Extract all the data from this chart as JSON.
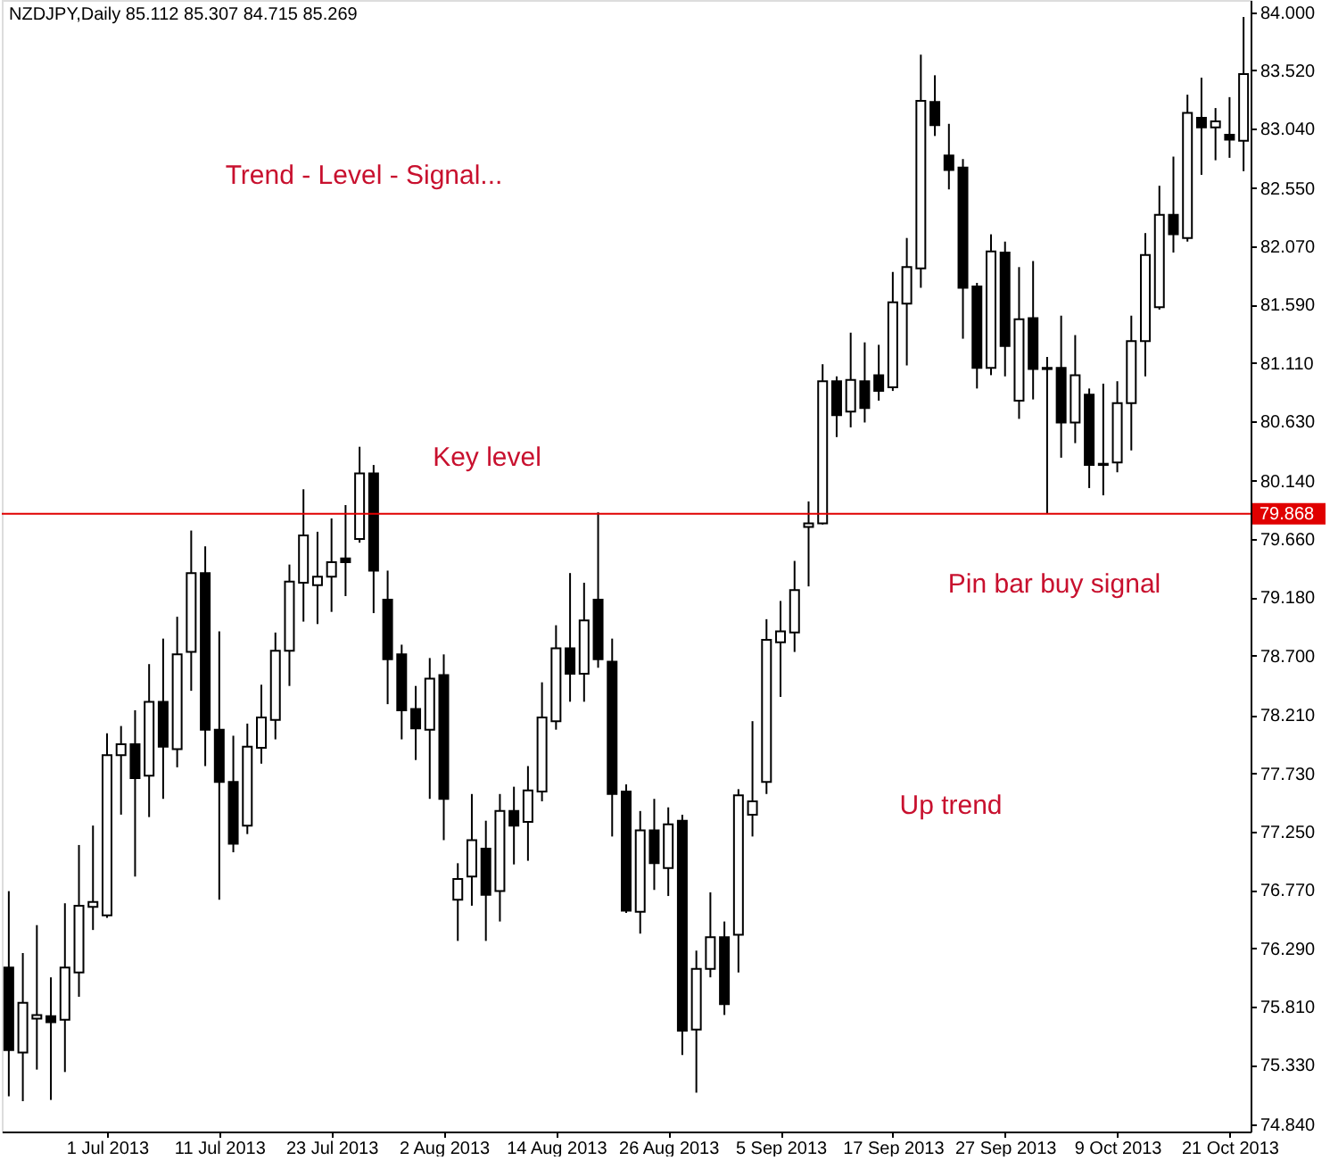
{
  "chart_data": {
    "type": "candlestick",
    "title": "NZDJPY,Daily  85.112 85.307 84.715 85.269",
    "annotations": [
      "Trend - Level - Signal...",
      "Key level",
      "Pin bar buy signal",
      "Up trend"
    ],
    "categories": [
      null,
      null,
      null,
      null,
      null,
      null,
      null,
      "1 Jul 2013",
      null,
      null,
      null,
      null,
      null,
      null,
      null,
      "11 Jul 2013",
      null,
      null,
      null,
      null,
      null,
      null,
      null,
      "23 Jul 2013",
      null,
      null,
      null,
      null,
      null,
      null,
      null,
      "2 Aug 2013",
      null,
      null,
      null,
      null,
      null,
      null,
      null,
      "14 Aug 2013",
      null,
      null,
      null,
      null,
      null,
      null,
      null,
      "26 Aug 2013",
      null,
      null,
      null,
      null,
      null,
      null,
      null,
      "5 Sep 2013",
      null,
      null,
      null,
      null,
      null,
      null,
      null,
      "17 Sep 2013",
      null,
      null,
      null,
      null,
      null,
      null,
      null,
      "27 Sep 2013",
      null,
      null,
      null,
      null,
      null,
      null,
      null,
      "9 Oct 2013",
      null,
      null,
      null,
      null,
      null,
      null,
      null,
      "21 Oct 2013",
      null
    ],
    "ohlc": [
      [
        76.13,
        76.76,
        75.07,
        75.45
      ],
      [
        75.43,
        76.25,
        75.03,
        75.84
      ],
      [
        75.71,
        76.48,
        75.29,
        75.74
      ],
      [
        75.73,
        76.05,
        75.04,
        75.68
      ],
      [
        75.7,
        76.66,
        75.27,
        76.13
      ],
      [
        76.09,
        77.14,
        75.89,
        76.64
      ],
      [
        76.63,
        77.3,
        76.44,
        76.67
      ],
      [
        76.56,
        78.06,
        76.54,
        77.88
      ],
      [
        77.88,
        78.12,
        77.39,
        77.97
      ],
      [
        77.97,
        78.25,
        76.88,
        77.69
      ],
      [
        77.71,
        78.63,
        77.37,
        78.32
      ],
      [
        78.32,
        78.84,
        77.52,
        77.95
      ],
      [
        77.93,
        79.02,
        77.78,
        78.71
      ],
      [
        78.73,
        79.73,
        78.41,
        79.38
      ],
      [
        79.38,
        79.6,
        77.79,
        78.09
      ],
      [
        78.09,
        78.9,
        76.69,
        77.66
      ],
      [
        77.66,
        78.04,
        77.08,
        77.15
      ],
      [
        77.3,
        78.14,
        77.23,
        77.95
      ],
      [
        77.94,
        78.46,
        77.81,
        78.19
      ],
      [
        78.17,
        78.89,
        78.01,
        78.74
      ],
      [
        78.74,
        79.45,
        78.45,
        79.31
      ],
      [
        79.3,
        80.07,
        78.98,
        79.69
      ],
      [
        79.28,
        79.72,
        78.96,
        79.35
      ],
      [
        79.35,
        79.83,
        79.06,
        79.47
      ],
      [
        79.5,
        79.94,
        79.19,
        79.47
      ],
      [
        79.66,
        80.42,
        79.63,
        80.2
      ],
      [
        80.2,
        80.27,
        79.05,
        79.4
      ],
      [
        79.16,
        79.4,
        78.3,
        78.67
      ],
      [
        78.71,
        78.79,
        78.01,
        78.25
      ],
      [
        78.26,
        78.45,
        77.84,
        78.1
      ],
      [
        78.09,
        78.68,
        77.52,
        78.51
      ],
      [
        78.54,
        78.71,
        77.18,
        77.52
      ],
      [
        76.69,
        76.99,
        76.35,
        76.86
      ],
      [
        76.88,
        77.56,
        76.64,
        77.18
      ],
      [
        77.11,
        77.34,
        76.35,
        76.73
      ],
      [
        76.76,
        77.56,
        76.51,
        77.42
      ],
      [
        77.42,
        77.62,
        76.98,
        77.3
      ],
      [
        77.33,
        77.79,
        77.01,
        77.59
      ],
      [
        77.58,
        78.48,
        77.5,
        78.19
      ],
      [
        78.16,
        78.95,
        78.09,
        78.76
      ],
      [
        78.76,
        79.38,
        78.32,
        78.55
      ],
      [
        78.55,
        79.3,
        78.32,
        78.99
      ],
      [
        79.16,
        79.88,
        78.6,
        78.67
      ],
      [
        78.65,
        78.84,
        77.21,
        77.56
      ],
      [
        77.58,
        77.64,
        76.58,
        76.6
      ],
      [
        76.59,
        77.42,
        76.41,
        77.26
      ],
      [
        77.26,
        77.52,
        76.77,
        76.99
      ],
      [
        76.95,
        77.45,
        76.72,
        77.31
      ],
      [
        77.34,
        77.39,
        75.41,
        75.61
      ],
      [
        75.62,
        76.27,
        75.1,
        76.12
      ],
      [
        76.12,
        76.75,
        76.05,
        76.38
      ],
      [
        76.38,
        76.51,
        75.74,
        75.83
      ],
      [
        76.4,
        77.6,
        76.09,
        77.55
      ],
      [
        77.39,
        78.16,
        77.21,
        77.5
      ],
      [
        77.66,
        79.0,
        77.56,
        78.83
      ],
      [
        78.81,
        79.15,
        78.36,
        78.9
      ],
      [
        78.89,
        79.48,
        78.73,
        79.24
      ],
      [
        79.76,
        79.97,
        79.27,
        79.79
      ],
      [
        79.79,
        81.1,
        79.78,
        80.96
      ],
      [
        80.96,
        81.0,
        80.5,
        80.68
      ],
      [
        80.71,
        81.36,
        80.58,
        80.97
      ],
      [
        80.96,
        81.28,
        80.62,
        80.74
      ],
      [
        81.01,
        81.26,
        80.8,
        80.88
      ],
      [
        80.91,
        81.86,
        80.88,
        81.61
      ],
      [
        81.6,
        82.14,
        81.09,
        81.9
      ],
      [
        81.89,
        83.65,
        81.73,
        83.27
      ],
      [
        83.26,
        83.48,
        82.98,
        83.07
      ],
      [
        82.82,
        83.08,
        82.54,
        82.7
      ],
      [
        82.72,
        82.79,
        81.31,
        81.73
      ],
      [
        81.74,
        81.77,
        80.9,
        81.07
      ],
      [
        81.07,
        82.17,
        81.01,
        82.03
      ],
      [
        82.02,
        82.11,
        81.0,
        81.25
      ],
      [
        80.8,
        81.9,
        80.65,
        81.47
      ],
      [
        81.48,
        81.95,
        80.81,
        81.06
      ],
      [
        81.06,
        81.16,
        79.87,
        81.07
      ],
      [
        81.07,
        81.5,
        80.33,
        80.62
      ],
      [
        80.62,
        81.34,
        80.45,
        81.01
      ],
      [
        80.85,
        80.9,
        80.08,
        80.27
      ],
      [
        80.27,
        80.94,
        80.02,
        80.28
      ],
      [
        80.29,
        80.96,
        80.21,
        80.78
      ],
      [
        80.78,
        81.5,
        80.39,
        81.29
      ],
      [
        81.29,
        82.18,
        81.0,
        82.0
      ],
      [
        81.57,
        82.57,
        81.55,
        82.33
      ],
      [
        82.33,
        82.81,
        82.02,
        82.17
      ],
      [
        82.14,
        83.32,
        82.11,
        83.17
      ],
      [
        83.13,
        83.46,
        82.66,
        83.05
      ],
      [
        83.05,
        83.21,
        82.78,
        83.1
      ],
      [
        82.99,
        83.3,
        82.8,
        82.95
      ],
      [
        82.94,
        83.96,
        82.69,
        83.49
      ]
    ],
    "colors": [
      "#000000",
      "#ffffff",
      "#ffffff",
      "#000000",
      "#ffffff",
      "#ffffff",
      "#ffffff",
      "#ffffff",
      "#ffffff",
      "#000000",
      "#ffffff",
      "#000000",
      "#ffffff",
      "#ffffff",
      "#000000",
      "#000000",
      "#000000",
      "#ffffff",
      "#ffffff",
      "#ffffff",
      "#ffffff",
      "#ffffff",
      "#ffffff",
      "#ffffff",
      "#000000",
      "#ffffff",
      "#000000",
      "#000000",
      "#000000",
      "#000000",
      "#ffffff",
      "#000000",
      "#ffffff",
      "#ffffff",
      "#000000",
      "#ffffff",
      "#000000",
      "#ffffff",
      "#ffffff",
      "#ffffff",
      "#000000",
      "#ffffff",
      "#000000",
      "#000000",
      "#000000",
      "#ffffff",
      "#000000",
      "#ffffff",
      "#000000",
      "#ffffff",
      "#ffffff",
      "#000000",
      "#ffffff",
      "#ffffff",
      "#ffffff",
      "#ffffff",
      "#ffffff",
      "#ffffff",
      "#ffffff",
      "#000000",
      "#ffffff",
      "#000000",
      "#000000",
      "#ffffff",
      "#ffffff",
      "#ffffff",
      "#000000",
      "#000000",
      "#000000",
      "#000000",
      "#ffffff",
      "#000000",
      "#ffffff",
      "#000000",
      "#ffffff",
      "#000000",
      "#ffffff",
      "#000000",
      "#ffffff",
      "#ffffff",
      "#ffffff",
      "#ffffff",
      "#ffffff",
      "#000000",
      "#ffffff",
      "#000000",
      "#ffffff",
      "#000000",
      "#ffffff"
    ],
    "ylim": [
      74.78,
      84.1
    ],
    "yticks": [
      {
        "value": 74.84,
        "label": "74.840"
      },
      {
        "value": 75.33,
        "label": "75.330"
      },
      {
        "value": 75.81,
        "label": "75.810"
      },
      {
        "value": 76.29,
        "label": "76.290"
      },
      {
        "value": 76.77,
        "label": "76.770"
      },
      {
        "value": 77.25,
        "label": "77.250"
      },
      {
        "value": 77.73,
        "label": "77.730"
      },
      {
        "value": 78.21,
        "label": "78.210"
      },
      {
        "value": 78.7,
        "label": "78.700"
      },
      {
        "value": 79.18,
        "label": "79.180"
      },
      {
        "value": 79.66,
        "label": "79.660"
      },
      {
        "value": 80.14,
        "label": "80.140"
      },
      {
        "value": 80.63,
        "label": "80.630"
      },
      {
        "value": 81.11,
        "label": "81.110"
      },
      {
        "value": 81.59,
        "label": "81.590"
      },
      {
        "value": 82.07,
        "label": "82.070"
      },
      {
        "value": 82.55,
        "label": "82.550"
      },
      {
        "value": 83.04,
        "label": "83.040"
      },
      {
        "value": 83.52,
        "label": "83.520"
      },
      {
        "value": 84.0,
        "label": "84.000"
      }
    ],
    "ref_lines": [
      {
        "axis": "y",
        "value": 79.868,
        "label": "79.868",
        "color": "#e00000"
      }
    ],
    "grid": false
  }
}
